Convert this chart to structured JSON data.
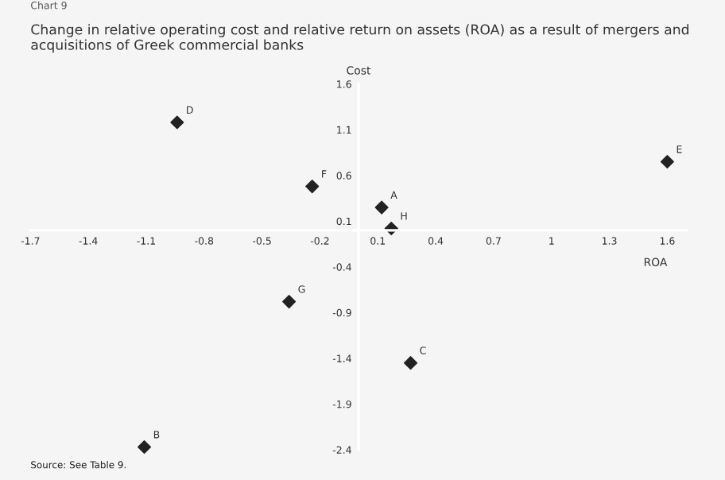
{
  "chart_data": {
    "type": "scatter",
    "title": "Change in relative operating cost and relative return on assets (ROA) as a result of mergers and acquisitions of Greek commercial banks",
    "xlabel": "ROA",
    "ylabel": "Cost",
    "x": [
      0.12,
      -1.11,
      0.27,
      -0.94,
      1.6,
      -0.24,
      -0.36,
      0.17
    ],
    "series": [
      {
        "color": "#222222",
        "values": [
          0.25,
          -2.37,
          -1.45,
          1.18,
          0.75,
          0.48,
          -0.78,
          0.02
        ]
      }
    ],
    "annotations": [
      {
        "text": "A",
        "x": 0.12,
        "y": 0.25
      },
      {
        "text": "B",
        "x": -1.11,
        "y": -2.37
      },
      {
        "text": "C",
        "x": 0.27,
        "y": -1.45
      },
      {
        "text": "D",
        "x": -0.94,
        "y": 1.18
      },
      {
        "text": "E",
        "x": 1.6,
        "y": 0.75
      },
      {
        "text": "F",
        "x": -0.24,
        "y": 0.48
      },
      {
        "text": "G",
        "x": -0.36,
        "y": -0.78
      },
      {
        "text": "H",
        "x": 0.17,
        "y": 0.02
      },
      "Chart 9",
      "Source: See Table 9."
    ],
    "xlim": [
      -1.7,
      1.7
    ],
    "ylim": [
      -2.4,
      1.6
    ],
    "xticks": [
      -1.7,
      -1.4,
      -1.1,
      -0.8,
      -0.5,
      -0.2,
      0.1,
      0.4,
      0.7,
      1,
      1.3,
      1.6
    ],
    "yticks": [
      -2.4,
      -1.9,
      -1.4,
      -0.9,
      -0.4,
      0.1,
      0.6,
      1.1,
      1.6
    ],
    "grid": false,
    "legend": false,
    "marker": "diamond"
  }
}
